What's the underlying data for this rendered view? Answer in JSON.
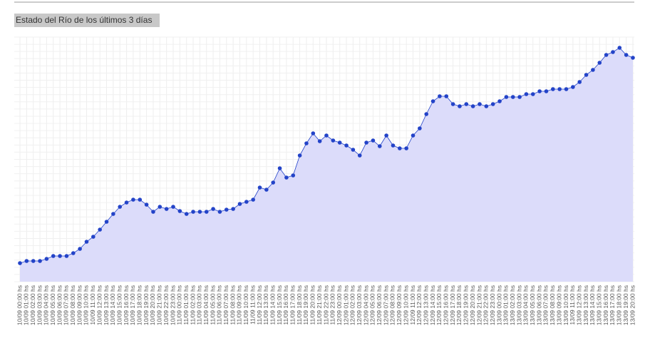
{
  "chart_data": {
    "type": "area",
    "title": "Estado del Río de los últimos 3 días",
    "categories": [
      "10/09 00:00 hs",
      "10/09 01:00 hs",
      "10/09 02:00 hs",
      "10/09 03:00 hs",
      "10/09 04:00 hs",
      "10/09 05:00 hs",
      "10/09 06:00 hs",
      "10/09 07:00 hs",
      "10/09 08:00 hs",
      "10/09 09:00 hs",
      "10/09 10:00 hs",
      "10/09 11:00 hs",
      "10/09 12:00 hs",
      "10/09 13:00 hs",
      "10/09 14:00 hs",
      "10/09 15:00 hs",
      "10/09 16:00 hs",
      "10/09 17:00 hs",
      "10/09 18:00 hs",
      "10/09 19:00 hs",
      "10/09 20:00 hs",
      "10/09 21:00 hs",
      "10/09 22:00 hs",
      "10/09 23:00 hs",
      "11/09 00:00 hs",
      "11/09 01:00 hs",
      "11/09 02:00 hs",
      "11/09 03:00 hs",
      "11/09 04:00 hs",
      "11/09 05:00 hs",
      "11/09 06:00 hs",
      "11/09 07:00 hs",
      "11/09 08:00 hs",
      "11/09 09:00 hs",
      "11/09 10:00 hs",
      "11/09 11:00 hs",
      "11/09 12:00 hs",
      "11/09 13:00 hs",
      "11/09 14:00 hs",
      "11/09 15:00 hs",
      "11/09 16:00 hs",
      "11/09 17:00 hs",
      "11/09 18:00 hs",
      "11/09 19:00 hs",
      "11/09 20:00 hs",
      "11/09 21:00 hs",
      "11/09 22:00 hs",
      "11/09 23:00 hs",
      "12/09 00:00 hs",
      "12/09 01:00 hs",
      "12/09 02:00 hs",
      "12/09 03:00 hs",
      "12/09 04:00 hs",
      "12/09 05:00 hs",
      "12/09 06:00 hs",
      "12/09 07:00 hs",
      "12/09 08:00 hs",
      "12/09 09:00 hs",
      "12/09 10:00 hs",
      "12/09 11:00 hs",
      "12/09 12:00 hs",
      "12/09 13:00 hs",
      "12/09 14:00 hs",
      "12/09 15:00 hs",
      "12/09 16:00 hs",
      "12/09 17:00 hs",
      "12/09 18:00 hs",
      "12/09 19:00 hs",
      "12/09 20:00 hs",
      "12/09 21:00 hs",
      "12/09 22:00 hs",
      "12/09 23:00 hs",
      "13/09 00:00 hs",
      "13/09 01:00 hs",
      "13/09 02:00 hs",
      "13/09 03:00 hs",
      "13/09 04:00 hs",
      "13/09 05:00 hs",
      "13/09 06:00 hs",
      "13/09 07:00 hs",
      "13/09 08:00 hs",
      "13/09 09:00 hs",
      "13/09 10:00 hs",
      "13/09 11:00 hs",
      "13/09 12:00 hs",
      "13/09 13:00 hs",
      "13/09 14:00 hs",
      "13/09 15:00 hs",
      "13/09 16:00 hs",
      "13/09 17:00 hs",
      "13/09 18:00 hs",
      "13/09 19:00 hs",
      "13/09 20:00 hs"
    ],
    "values": [
      26,
      29,
      29,
      29,
      32,
      36,
      36,
      36,
      40,
      46,
      56,
      63,
      73,
      84,
      95,
      105,
      111,
      115,
      115,
      108,
      98,
      105,
      102,
      105,
      99,
      95,
      98,
      98,
      98,
      102,
      98,
      101,
      102,
      109,
      112,
      115,
      132,
      129,
      139,
      159,
      146,
      149,
      177,
      194,
      208,
      197,
      205,
      198,
      195,
      191,
      185,
      177,
      195,
      198,
      190,
      205,
      191,
      187,
      187,
      205,
      215,
      235,
      253,
      260,
      260,
      249,
      246,
      249,
      246,
      249,
      246,
      249,
      253,
      259,
      259,
      259,
      263,
      263,
      267,
      267,
      270,
      270,
      270,
      273,
      280,
      290,
      297,
      307,
      318,
      322,
      328,
      318,
      314
    ],
    "ylim": [
      0,
      343
    ],
    "color": "#2343c8",
    "fill": "#dcdcfa",
    "grid": true
  }
}
